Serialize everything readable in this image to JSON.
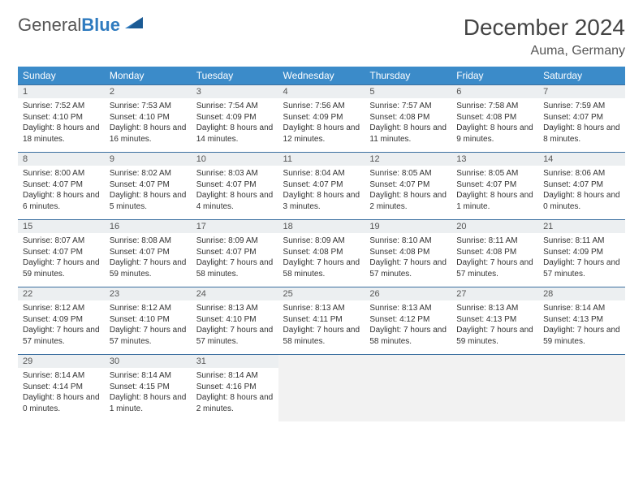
{
  "brand": {
    "a": "General",
    "b": "Blue"
  },
  "title": {
    "month": "December 2024",
    "location": "Auma, Germany"
  },
  "colors": {
    "header_bg": "#3b8bc9",
    "header_fg": "#ffffff",
    "daynum_bg": "#eceff1",
    "row_border": "#3b6fa0",
    "empty_bg": "#f2f2f2",
    "text": "#333333",
    "brand_blue": "#2f7bbf"
  },
  "columns": [
    "Sunday",
    "Monday",
    "Tuesday",
    "Wednesday",
    "Thursday",
    "Friday",
    "Saturday"
  ],
  "weeks": [
    [
      {
        "n": "1",
        "sr": "7:52 AM",
        "ss": "4:10 PM",
        "dl": "8 hours and 18 minutes."
      },
      {
        "n": "2",
        "sr": "7:53 AM",
        "ss": "4:10 PM",
        "dl": "8 hours and 16 minutes."
      },
      {
        "n": "3",
        "sr": "7:54 AM",
        "ss": "4:09 PM",
        "dl": "8 hours and 14 minutes."
      },
      {
        "n": "4",
        "sr": "7:56 AM",
        "ss": "4:09 PM",
        "dl": "8 hours and 12 minutes."
      },
      {
        "n": "5",
        "sr": "7:57 AM",
        "ss": "4:08 PM",
        "dl": "8 hours and 11 minutes."
      },
      {
        "n": "6",
        "sr": "7:58 AM",
        "ss": "4:08 PM",
        "dl": "8 hours and 9 minutes."
      },
      {
        "n": "7",
        "sr": "7:59 AM",
        "ss": "4:07 PM",
        "dl": "8 hours and 8 minutes."
      }
    ],
    [
      {
        "n": "8",
        "sr": "8:00 AM",
        "ss": "4:07 PM",
        "dl": "8 hours and 6 minutes."
      },
      {
        "n": "9",
        "sr": "8:02 AM",
        "ss": "4:07 PM",
        "dl": "8 hours and 5 minutes."
      },
      {
        "n": "10",
        "sr": "8:03 AM",
        "ss": "4:07 PM",
        "dl": "8 hours and 4 minutes."
      },
      {
        "n": "11",
        "sr": "8:04 AM",
        "ss": "4:07 PM",
        "dl": "8 hours and 3 minutes."
      },
      {
        "n": "12",
        "sr": "8:05 AM",
        "ss": "4:07 PM",
        "dl": "8 hours and 2 minutes."
      },
      {
        "n": "13",
        "sr": "8:05 AM",
        "ss": "4:07 PM",
        "dl": "8 hours and 1 minute."
      },
      {
        "n": "14",
        "sr": "8:06 AM",
        "ss": "4:07 PM",
        "dl": "8 hours and 0 minutes."
      }
    ],
    [
      {
        "n": "15",
        "sr": "8:07 AM",
        "ss": "4:07 PM",
        "dl": "7 hours and 59 minutes."
      },
      {
        "n": "16",
        "sr": "8:08 AM",
        "ss": "4:07 PM",
        "dl": "7 hours and 59 minutes."
      },
      {
        "n": "17",
        "sr": "8:09 AM",
        "ss": "4:07 PM",
        "dl": "7 hours and 58 minutes."
      },
      {
        "n": "18",
        "sr": "8:09 AM",
        "ss": "4:08 PM",
        "dl": "7 hours and 58 minutes."
      },
      {
        "n": "19",
        "sr": "8:10 AM",
        "ss": "4:08 PM",
        "dl": "7 hours and 57 minutes."
      },
      {
        "n": "20",
        "sr": "8:11 AM",
        "ss": "4:08 PM",
        "dl": "7 hours and 57 minutes."
      },
      {
        "n": "21",
        "sr": "8:11 AM",
        "ss": "4:09 PM",
        "dl": "7 hours and 57 minutes."
      }
    ],
    [
      {
        "n": "22",
        "sr": "8:12 AM",
        "ss": "4:09 PM",
        "dl": "7 hours and 57 minutes."
      },
      {
        "n": "23",
        "sr": "8:12 AM",
        "ss": "4:10 PM",
        "dl": "7 hours and 57 minutes."
      },
      {
        "n": "24",
        "sr": "8:13 AM",
        "ss": "4:10 PM",
        "dl": "7 hours and 57 minutes."
      },
      {
        "n": "25",
        "sr": "8:13 AM",
        "ss": "4:11 PM",
        "dl": "7 hours and 58 minutes."
      },
      {
        "n": "26",
        "sr": "8:13 AM",
        "ss": "4:12 PM",
        "dl": "7 hours and 58 minutes."
      },
      {
        "n": "27",
        "sr": "8:13 AM",
        "ss": "4:13 PM",
        "dl": "7 hours and 59 minutes."
      },
      {
        "n": "28",
        "sr": "8:14 AM",
        "ss": "4:13 PM",
        "dl": "7 hours and 59 minutes."
      }
    ],
    [
      {
        "n": "29",
        "sr": "8:14 AM",
        "ss": "4:14 PM",
        "dl": "8 hours and 0 minutes."
      },
      {
        "n": "30",
        "sr": "8:14 AM",
        "ss": "4:15 PM",
        "dl": "8 hours and 1 minute."
      },
      {
        "n": "31",
        "sr": "8:14 AM",
        "ss": "4:16 PM",
        "dl": "8 hours and 2 minutes."
      },
      null,
      null,
      null,
      null
    ]
  ],
  "labels": {
    "sunrise": "Sunrise: ",
    "sunset": "Sunset: ",
    "daylight": "Daylight: "
  }
}
